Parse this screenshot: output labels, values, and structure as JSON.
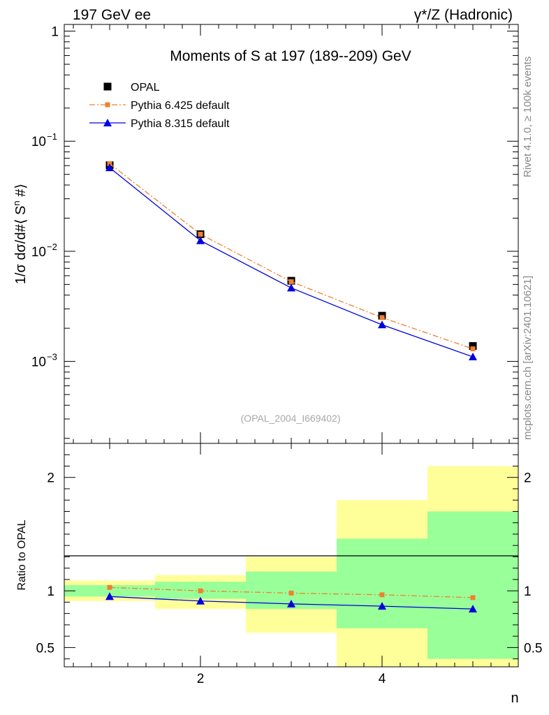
{
  "header": {
    "left": "197 GeV ee",
    "right": "γ*/Z (Hadronic)"
  },
  "side_labels": {
    "rivet": "Rivet 4.1.0, ≥ 100k events",
    "mcplots": "mcplots.cern.ch [arXiv:2401.10621]"
  },
  "chart_data": [
    {
      "type": "line",
      "panel": "main",
      "title": "Moments of S at 197 (189--209) GeV",
      "analysis_id": "(OPAL_2004_I669402)",
      "ylabel": "1/σ  dσ/d#⟨ S^n #⟩",
      "yscale": "log",
      "xlim": [
        0.5,
        5.5
      ],
      "ylim": [
        0.00018,
        1.15
      ],
      "y_ticks": [
        {
          "value": 1,
          "label": "1"
        },
        {
          "value": 0.1,
          "label": "10",
          "exp": "−1"
        },
        {
          "value": 0.01,
          "label": "10",
          "exp": "−2"
        },
        {
          "value": 0.001,
          "label": "10",
          "exp": "−3"
        }
      ],
      "x": [
        1,
        2,
        3,
        4,
        5
      ],
      "legend_position": "top-left",
      "series": [
        {
          "name": "OPAL",
          "color": "#000000",
          "marker": "square",
          "line": "none",
          "values": [
            0.0605,
            0.0143,
            0.0054,
            0.0026,
            0.00138
          ]
        },
        {
          "name": "Pythia 6.425 default",
          "color": "#f08030",
          "marker": "square-small",
          "line": "dashdot",
          "values": [
            0.0625,
            0.0143,
            0.0053,
            0.0025,
            0.0013
          ]
        },
        {
          "name": "Pythia 8.315 default",
          "color": "#0000dd",
          "marker": "triangle",
          "line": "solid",
          "values": [
            0.0575,
            0.0125,
            0.00465,
            0.00215,
            0.0011
          ]
        }
      ]
    },
    {
      "type": "line",
      "panel": "ratio",
      "ylabel": "Ratio to OPAL",
      "xlabel": "n",
      "xlim": [
        0.5,
        5.5
      ],
      "ylim": [
        0.33,
        2.3
      ],
      "y_ticks": [
        {
          "value": 0.5,
          "label": "0.5"
        },
        {
          "value": 1,
          "label": "1"
        },
        {
          "value": 2,
          "label": "2"
        }
      ],
      "x_ticks": [
        {
          "value": 2,
          "label": "2"
        },
        {
          "value": 4,
          "label": "4"
        }
      ],
      "bands": {
        "bins": [
          [
            0.5,
            1.5
          ],
          [
            1.5,
            2.5
          ],
          [
            2.5,
            3.5
          ],
          [
            3.5,
            4.5
          ],
          [
            4.5,
            5.5
          ]
        ],
        "yellow": [
          [
            0.91,
            1.09
          ],
          [
            0.84,
            1.14
          ],
          [
            0.63,
            1.3
          ],
          [
            0.33,
            1.8
          ],
          [
            0.33,
            2.1
          ]
        ],
        "green": [
          [
            0.95,
            1.05
          ],
          [
            0.93,
            1.08
          ],
          [
            0.84,
            1.17
          ],
          [
            0.67,
            1.46
          ],
          [
            0.4,
            1.7
          ]
        ]
      },
      "x": [
        1,
        2,
        3,
        4,
        5
      ],
      "series": [
        {
          "name": "Pythia 6.425 default",
          "color": "#f08030",
          "marker": "square-small",
          "line": "dashdot",
          "values": [
            1.03,
            1.0,
            0.98,
            0.965,
            0.94
          ]
        },
        {
          "name": "Pythia 8.315 default",
          "color": "#0000dd",
          "marker": "triangle",
          "line": "solid",
          "values": [
            0.95,
            0.91,
            0.885,
            0.865,
            0.84
          ]
        }
      ]
    }
  ]
}
